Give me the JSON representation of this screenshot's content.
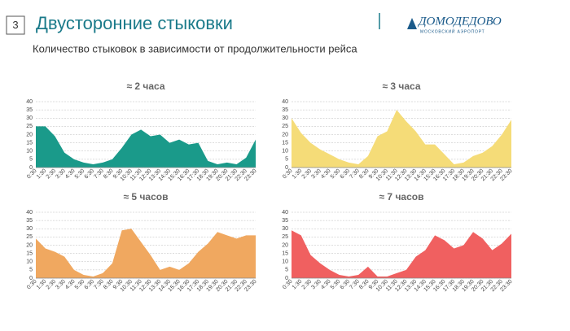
{
  "header": {
    "slide_number": "3",
    "title": "Двусторонние стыковки",
    "subtitle": "Количество стыковок в зависимости от продолжительности рейса",
    "logo": "ДОМОДЕДОВО",
    "logo_sub": "МОСКОВСКИЙ АЭРОПОРТ"
  },
  "chart_data": [
    {
      "type": "area",
      "title": "≈ 2 часа",
      "color": "#1a9a8a",
      "categories": [
        "0:30",
        "1:30",
        "2:30",
        "3:30",
        "4:30",
        "5:30",
        "6:30",
        "7:30",
        "8:30",
        "9:30",
        "10:30",
        "11:30",
        "12:30",
        "13:30",
        "14:30",
        "15:30",
        "16:30",
        "17:30",
        "18:30",
        "19:30",
        "20:30",
        "21:30",
        "22:30",
        "23:30"
      ],
      "values": [
        25,
        25,
        19,
        9,
        5,
        3,
        2,
        3,
        5,
        12,
        20,
        23,
        19,
        20,
        15,
        17,
        14,
        15,
        4,
        2,
        3,
        2,
        6,
        17
      ],
      "ylim": [
        0,
        40
      ],
      "yticks": [
        0,
        5,
        10,
        15,
        20,
        25,
        30,
        35,
        40
      ],
      "grid": true
    },
    {
      "type": "area",
      "title": "≈ 3 часа",
      "color": "#f5dc78",
      "categories": [
        "0:30",
        "1:30",
        "2:30",
        "3:30",
        "4:30",
        "5:30",
        "6:30",
        "7:30",
        "8:30",
        "9:30",
        "10:30",
        "11:30",
        "12:30",
        "13:30",
        "14:30",
        "15:30",
        "16:30",
        "17:30",
        "18:30",
        "19:30",
        "20:30",
        "21:30",
        "22:30",
        "23:30"
      ],
      "values": [
        30,
        21,
        15,
        11,
        8,
        5,
        3,
        2,
        7,
        19,
        22,
        35,
        28,
        22,
        14,
        14,
        8,
        2,
        3,
        7,
        9,
        13,
        20,
        29
      ],
      "ylim": [
        0,
        40
      ],
      "yticks": [
        0,
        5,
        10,
        15,
        20,
        25,
        30,
        35,
        40
      ],
      "grid": true
    },
    {
      "type": "area",
      "title": "≈ 5 часов",
      "color": "#f0a860",
      "categories": [
        "0:30",
        "1:30",
        "2:30",
        "3:30",
        "4:30",
        "5:30",
        "6:30",
        "7:30",
        "8:30",
        "9:30",
        "10:30",
        "11:30",
        "12:30",
        "13:30",
        "14:30",
        "15:30",
        "16:30",
        "17:30",
        "18:30",
        "19:30",
        "20:30",
        "21:30",
        "22:30",
        "23:30"
      ],
      "values": [
        24,
        18,
        16,
        13,
        5,
        2,
        1,
        3,
        9,
        29,
        30,
        22,
        14,
        5,
        7,
        5,
        9,
        16,
        21,
        28,
        26,
        24,
        26,
        26
      ],
      "ylim": [
        0,
        40
      ],
      "yticks": [
        0,
        5,
        10,
        15,
        20,
        25,
        30,
        35,
        40
      ],
      "grid": true
    },
    {
      "type": "area",
      "title": "≈ 7 часов",
      "color": "#f06060",
      "categories": [
        "0:30",
        "1:30",
        "2:30",
        "3:30",
        "4:30",
        "5:30",
        "6:30",
        "7:30",
        "8:30",
        "9:30",
        "10:30",
        "11:30",
        "12:30",
        "13:30",
        "14:30",
        "15:30",
        "16:30",
        "17:30",
        "18:30",
        "19:30",
        "20:30",
        "21:30",
        "22:30",
        "23:30"
      ],
      "values": [
        29,
        26,
        14,
        9,
        5,
        2,
        1,
        2,
        7,
        1,
        1,
        3,
        5,
        13,
        17,
        26,
        23,
        18,
        20,
        28,
        24,
        17,
        21,
        27
      ],
      "ylim": [
        0,
        40
      ],
      "yticks": [
        0,
        5,
        10,
        15,
        20,
        25,
        30,
        35,
        40
      ],
      "grid": true
    }
  ]
}
